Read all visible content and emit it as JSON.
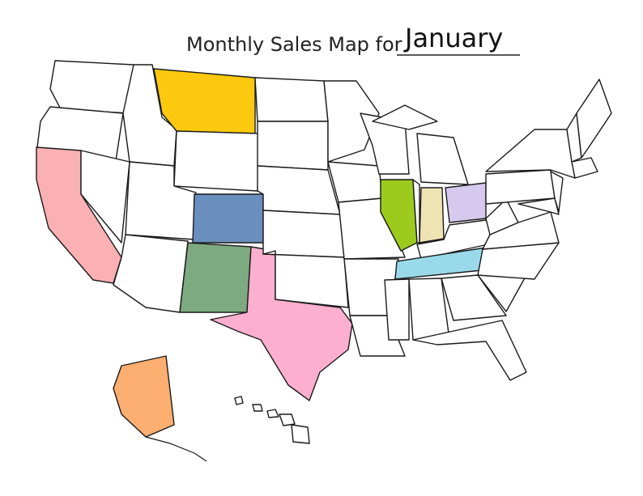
{
  "header": {
    "title": "Monthly Sales Map for",
    "month": "January"
  }
}
